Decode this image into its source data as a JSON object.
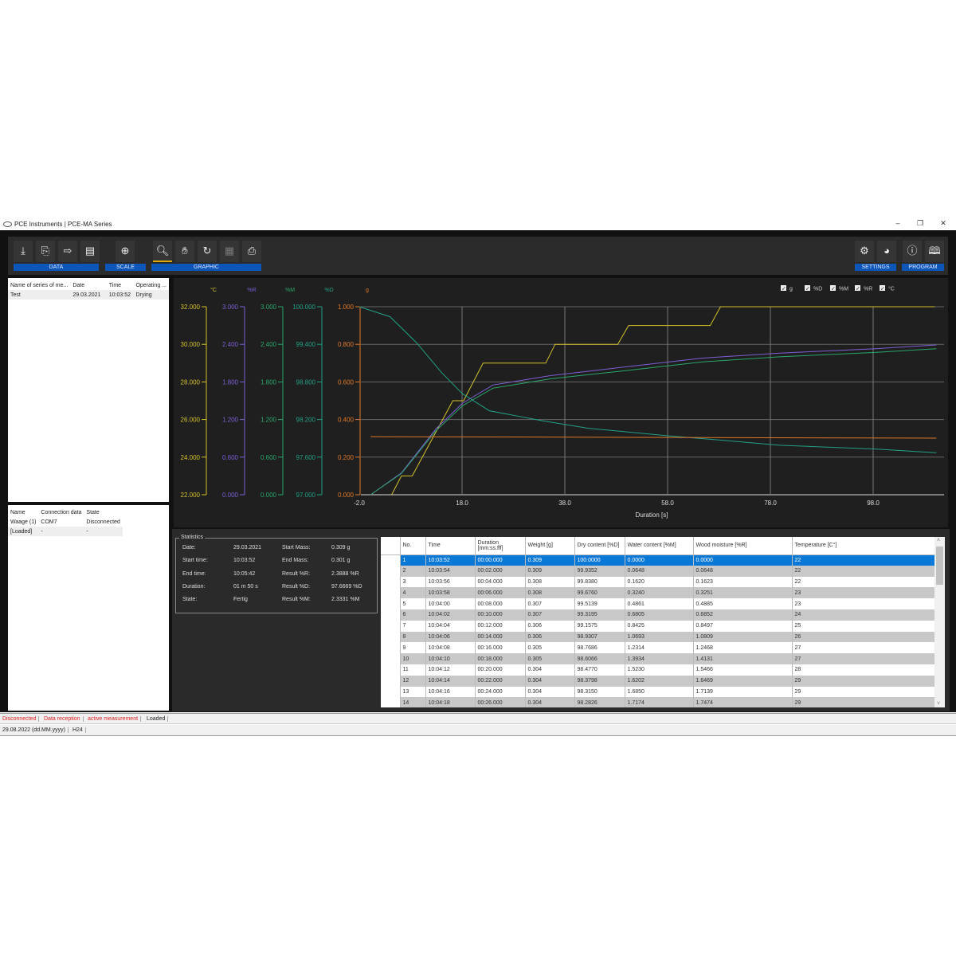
{
  "window": {
    "title": "PCE Instruments | PCE-MA Series",
    "controls": [
      "–",
      "❐",
      "✕"
    ]
  },
  "toolbar": {
    "groups": {
      "data": "DATA",
      "scale": "SCALE",
      "graphic": "GRAPHIC",
      "settings": "SETTINGS",
      "program": "PROGRAM"
    },
    "icons": {
      "import": "⤓",
      "export-excel": "⎘",
      "export-file": "⇨",
      "export-pdf": "▤",
      "zoom-in": "⊕",
      "magnifier": "🔍︎",
      "hand": "✋︎",
      "refresh": "↻",
      "grid": "▦",
      "print": "⎙",
      "gear": "⚙",
      "globe": "◕",
      "info": "ⓘ",
      "manual": "🕮︎"
    }
  },
  "series_list": {
    "headers": [
      "Name of series of me...",
      "Date",
      "Time",
      "Operating ..."
    ],
    "rows": [
      [
        "Test",
        "29.03.2021",
        "10:03:52",
        "Drying"
      ]
    ]
  },
  "devices": {
    "headers": [
      "Name",
      "Connection data",
      "State"
    ],
    "rows": [
      [
        "Waage (1)",
        "COM7",
        "Disconnected"
      ],
      [
        "[Loaded]",
        "-",
        "-"
      ]
    ]
  },
  "chart_data": {
    "type": "line",
    "xlabel": "Duration [s]",
    "xlim": [
      -2,
      112
    ],
    "xticks": [
      "-2.0",
      "18.0",
      "38.0",
      "58.0",
      "78.0",
      "98.0"
    ],
    "grid": true,
    "legend": {
      "placement": "top-right",
      "items": [
        {
          "label": "g",
          "checked": true
        },
        {
          "label": "%D",
          "checked": true
        },
        {
          "label": "%M",
          "checked": true
        },
        {
          "label": "%R",
          "checked": true
        },
        {
          "label": "°C",
          "checked": true
        }
      ]
    },
    "axes": [
      {
        "label": "°C",
        "color": "#d4c22a",
        "ylim": [
          22,
          32
        ],
        "ticks": [
          "22.000",
          "24.000",
          "26.000",
          "28.000",
          "30.000",
          "32.000"
        ]
      },
      {
        "label": "%R",
        "color": "#7d5fd6",
        "ylim": [
          0,
          3
        ],
        "ticks": [
          "0.000",
          "0.600",
          "1.200",
          "1.800",
          "2.400",
          "3.000"
        ]
      },
      {
        "label": "%M",
        "color": "#2aa66a",
        "ylim": [
          0,
          3
        ],
        "ticks": [
          "0.000",
          "0.600",
          "1.200",
          "1.800",
          "2.400",
          "3.000"
        ]
      },
      {
        "label": "%D",
        "color": "#22a085",
        "ylim": [
          97,
          100
        ],
        "ticks": [
          "97.000",
          "97.600",
          "98.200",
          "98.800",
          "99.400",
          "100.000"
        ]
      },
      {
        "label": "g",
        "color": "#e0782a",
        "ylim": [
          0,
          1
        ],
        "ticks": [
          "0.000",
          "0.200",
          "0.400",
          "0.600",
          "0.800",
          "1.000"
        ]
      }
    ],
    "series": [
      {
        "name": "°C",
        "axis": 0,
        "color": "#d4c22a",
        "x": [
          4.3,
          6.2,
          8.3,
          16.2,
          18.3,
          22.1,
          34.3,
          36.1,
          48.3,
          50.4,
          66.3,
          68.3,
          110
        ],
        "y": [
          22,
          23,
          23,
          27,
          27,
          29,
          29,
          30,
          30,
          31,
          31,
          32,
          32
        ]
      },
      {
        "name": "%R",
        "axis": 1,
        "color": "#7d5fd6",
        "x": [
          0.2,
          6.2,
          12.9,
          18.1,
          24,
          35.2,
          49.8,
          64.8,
          79.8,
          98.4,
          110.3
        ],
        "y": [
          0,
          0.35,
          1.05,
          1.46,
          1.75,
          1.9,
          2.04,
          2.18,
          2.26,
          2.33,
          2.39
        ]
      },
      {
        "name": "%M",
        "axis": 2,
        "color": "#2aa66a",
        "x": [
          0.2,
          6.2,
          12.9,
          18.1,
          24,
          35.2,
          49.8,
          64.8,
          79.8,
          98.4,
          110.3
        ],
        "y": [
          0,
          0.34,
          1.02,
          1.42,
          1.7,
          1.85,
          1.98,
          2.12,
          2.2,
          2.27,
          2.33
        ]
      },
      {
        "name": "%D",
        "axis": 3,
        "color": "#22a085",
        "x": [
          -2,
          4,
          9.2,
          14,
          18.1,
          23.3,
          33.7,
          42.6,
          58.2,
          68.6,
          79.8,
          98.4,
          110.3
        ],
        "y": [
          100,
          99.84,
          99.42,
          98.95,
          98.61,
          98.34,
          98.18,
          98.06,
          97.94,
          97.87,
          97.79,
          97.73,
          97.67
        ]
      },
      {
        "name": "g",
        "axis": 4,
        "color": "#e0782a",
        "x": [
          0.2,
          110.3
        ],
        "y": [
          0.309,
          0.301
        ]
      }
    ]
  },
  "statistics": {
    "title": "Statistics",
    "left": [
      [
        "Date:",
        "29.03.2021"
      ],
      [
        "Start time:",
        "10:03:52"
      ],
      [
        "End time:",
        "10:05:42"
      ],
      [
        "Duration:",
        "01 m 50 s"
      ],
      [
        "State:",
        "Fertig"
      ]
    ],
    "right": [
      [
        "Start Mass:",
        "0.309 g"
      ],
      [
        "End Mass:",
        "0.301 g"
      ],
      [
        "Result %R:",
        "2.3888 %R"
      ],
      [
        "Result %D:",
        "97.6669 %D"
      ],
      [
        "Result %M:",
        "2.3331 %M"
      ]
    ]
  },
  "table": {
    "headers": [
      "No.",
      "Time",
      "Duration [mm:ss.fff]",
      "Weight [g]",
      "Dry content [%D]",
      "Water content [%M]",
      "Wood moisture [%R]",
      "Temperature [C°]"
    ],
    "rows": [
      [
        "1",
        "10:03:52",
        "00:00.000",
        "0.309",
        "100.0000",
        "0.0000",
        "0.0000",
        "22"
      ],
      [
        "2",
        "10:03:54",
        "00:02.000",
        "0.309",
        "99.9352",
        "0.0648",
        "0.0648",
        "22"
      ],
      [
        "3",
        "10:03:56",
        "00:04.000",
        "0.308",
        "99.8380",
        "0.1620",
        "0.1623",
        "22"
      ],
      [
        "4",
        "10:03:58",
        "00:06.000",
        "0.308",
        "99.6760",
        "0.3240",
        "0.3251",
        "23"
      ],
      [
        "5",
        "10:04:00",
        "00:08.000",
        "0.307",
        "99.5139",
        "0.4861",
        "0.4885",
        "23"
      ],
      [
        "6",
        "10:04:02",
        "00:10.000",
        "0.307",
        "99.3195",
        "0.6805",
        "0.6852",
        "24"
      ],
      [
        "7",
        "10:04:04",
        "00:12.000",
        "0.306",
        "99.1575",
        "0.8425",
        "0.8497",
        "25"
      ],
      [
        "8",
        "10:04:06",
        "00:14.000",
        "0.306",
        "98.9307",
        "1.0693",
        "1.0809",
        "26"
      ],
      [
        "9",
        "10:04:08",
        "00:16.000",
        "0.305",
        "98.7686",
        "1.2314",
        "1.2468",
        "27"
      ],
      [
        "10",
        "10:04:10",
        "00:18.000",
        "0.305",
        "98.6066",
        "1.3934",
        "1.4131",
        "27"
      ],
      [
        "11",
        "10:04:12",
        "00:20.000",
        "0.304",
        "98.4770",
        "1.5230",
        "1.5466",
        "28"
      ],
      [
        "12",
        "10:04:14",
        "00:22.000",
        "0.304",
        "98.3798",
        "1.6202",
        "1.6469",
        "29"
      ],
      [
        "13",
        "10:04:16",
        "00:24.000",
        "0.304",
        "98.3150",
        "1.6850",
        "1.7139",
        "29"
      ],
      [
        "14",
        "10:04:18",
        "00:26.000",
        "0.304",
        "98.2826",
        "1.7174",
        "1.7474",
        "29"
      ]
    ],
    "selected_row": 0
  },
  "status": {
    "items": [
      "Disconnected",
      "Data reception",
      "active measurement",
      "Loaded"
    ],
    "error_color": "#e02020",
    "date_format": "29.08.2022 (dd.MM.yyyy)",
    "time_format": "H24"
  }
}
